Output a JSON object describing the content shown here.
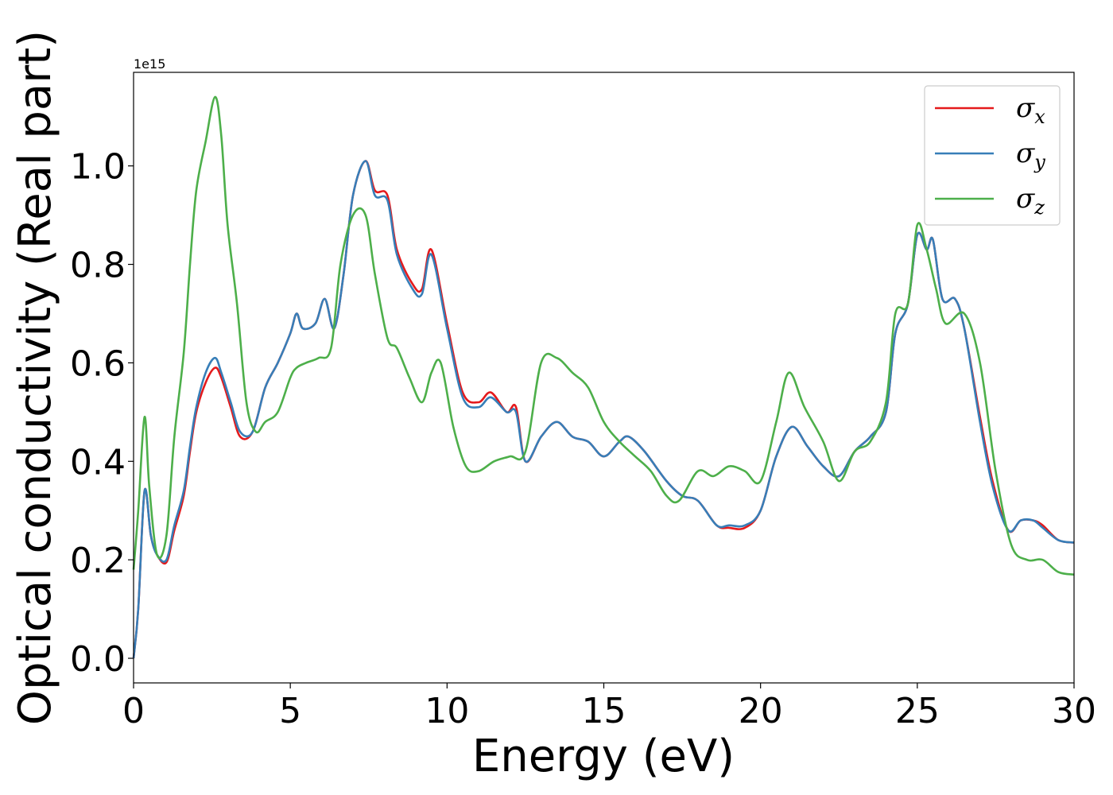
{
  "chart_data": {
    "type": "line",
    "xlabel": "Energy (eV)",
    "ylabel": "Optical conductivity (Real part)",
    "y_offset_label": "1e15",
    "xlim": [
      0,
      30
    ],
    "ylim": [
      -0.05,
      1.19
    ],
    "x_ticks": [
      0,
      5,
      10,
      15,
      20,
      25,
      30
    ],
    "y_ticks": [
      0.0,
      0.2,
      0.4,
      0.6,
      0.8,
      1.0
    ],
    "y_tick_labels": [
      "0.0",
      "0.2",
      "0.4",
      "0.6",
      "0.8",
      "1.0"
    ],
    "legend_position": "top-right",
    "grid": false,
    "series": [
      {
        "name": "σx",
        "symbol": "σ",
        "subscript": "x",
        "color": "#e41a1c",
        "points": [
          [
            0,
            0
          ],
          [
            0.15,
            0.1
          ],
          [
            0.35,
            0.34
          ],
          [
            0.55,
            0.25
          ],
          [
            0.75,
            0.21
          ],
          [
            1.05,
            0.195
          ],
          [
            1.3,
            0.26
          ],
          [
            1.6,
            0.33
          ],
          [
            1.8,
            0.42
          ],
          [
            2.0,
            0.5
          ],
          [
            2.3,
            0.56
          ],
          [
            2.6,
            0.59
          ],
          [
            2.8,
            0.57
          ],
          [
            3.1,
            0.51
          ],
          [
            3.4,
            0.45
          ],
          [
            3.8,
            0.46
          ],
          [
            4.2,
            0.55
          ],
          [
            4.6,
            0.6
          ],
          [
            5.0,
            0.66
          ],
          [
            5.2,
            0.7
          ],
          [
            5.4,
            0.67
          ],
          [
            5.8,
            0.68
          ],
          [
            6.1,
            0.73
          ],
          [
            6.4,
            0.67
          ],
          [
            6.7,
            0.78
          ],
          [
            7.0,
            0.94
          ],
          [
            7.4,
            1.01
          ],
          [
            7.7,
            0.95
          ],
          [
            8.1,
            0.94
          ],
          [
            8.4,
            0.83
          ],
          [
            8.9,
            0.76
          ],
          [
            9.2,
            0.75
          ],
          [
            9.5,
            0.83
          ],
          [
            10.0,
            0.68
          ],
          [
            10.5,
            0.54
          ],
          [
            11.0,
            0.52
          ],
          [
            11.4,
            0.54
          ],
          [
            11.9,
            0.5
          ],
          [
            12.2,
            0.51
          ],
          [
            12.5,
            0.4
          ],
          [
            13.0,
            0.45
          ],
          [
            13.5,
            0.48
          ],
          [
            14.0,
            0.45
          ],
          [
            14.5,
            0.44
          ],
          [
            15.0,
            0.41
          ],
          [
            15.5,
            0.44
          ],
          [
            15.8,
            0.45
          ],
          [
            16.3,
            0.42
          ],
          [
            17.0,
            0.36
          ],
          [
            17.5,
            0.33
          ],
          [
            18.0,
            0.32
          ],
          [
            18.6,
            0.27
          ],
          [
            19.0,
            0.265
          ],
          [
            19.5,
            0.265
          ],
          [
            20.0,
            0.3
          ],
          [
            20.5,
            0.41
          ],
          [
            21.0,
            0.47
          ],
          [
            21.5,
            0.43
          ],
          [
            22.0,
            0.39
          ],
          [
            22.5,
            0.37
          ],
          [
            23.0,
            0.42
          ],
          [
            23.5,
            0.45
          ],
          [
            24.0,
            0.5
          ],
          [
            24.3,
            0.66
          ],
          [
            24.7,
            0.72
          ],
          [
            25.0,
            0.86
          ],
          [
            25.3,
            0.83
          ],
          [
            25.5,
            0.85
          ],
          [
            25.8,
            0.73
          ],
          [
            26.2,
            0.73
          ],
          [
            26.5,
            0.67
          ],
          [
            27.0,
            0.49
          ],
          [
            27.4,
            0.36
          ],
          [
            27.9,
            0.26
          ],
          [
            28.3,
            0.28
          ],
          [
            28.7,
            0.28
          ],
          [
            29.0,
            0.27
          ],
          [
            29.5,
            0.24
          ],
          [
            30.0,
            0.235
          ]
        ]
      },
      {
        "name": "σy",
        "symbol": "σ",
        "subscript": "y",
        "color": "#377eb8",
        "points": [
          [
            0,
            0
          ],
          [
            0.15,
            0.1
          ],
          [
            0.35,
            0.34
          ],
          [
            0.55,
            0.25
          ],
          [
            0.75,
            0.21
          ],
          [
            1.05,
            0.2
          ],
          [
            1.3,
            0.27
          ],
          [
            1.6,
            0.34
          ],
          [
            1.8,
            0.43
          ],
          [
            2.0,
            0.51
          ],
          [
            2.3,
            0.58
          ],
          [
            2.6,
            0.61
          ],
          [
            2.8,
            0.58
          ],
          [
            3.1,
            0.52
          ],
          [
            3.4,
            0.46
          ],
          [
            3.8,
            0.46
          ],
          [
            4.2,
            0.55
          ],
          [
            4.6,
            0.6
          ],
          [
            5.0,
            0.66
          ],
          [
            5.2,
            0.7
          ],
          [
            5.4,
            0.67
          ],
          [
            5.8,
            0.68
          ],
          [
            6.1,
            0.73
          ],
          [
            6.4,
            0.67
          ],
          [
            6.7,
            0.78
          ],
          [
            7.0,
            0.94
          ],
          [
            7.4,
            1.01
          ],
          [
            7.7,
            0.94
          ],
          [
            8.1,
            0.93
          ],
          [
            8.4,
            0.82
          ],
          [
            8.9,
            0.75
          ],
          [
            9.2,
            0.74
          ],
          [
            9.5,
            0.82
          ],
          [
            10.0,
            0.67
          ],
          [
            10.5,
            0.53
          ],
          [
            11.0,
            0.51
          ],
          [
            11.4,
            0.53
          ],
          [
            11.9,
            0.5
          ],
          [
            12.2,
            0.5
          ],
          [
            12.5,
            0.4
          ],
          [
            13.0,
            0.45
          ],
          [
            13.5,
            0.48
          ],
          [
            14.0,
            0.45
          ],
          [
            14.5,
            0.44
          ],
          [
            15.0,
            0.41
          ],
          [
            15.5,
            0.44
          ],
          [
            15.8,
            0.45
          ],
          [
            16.3,
            0.42
          ],
          [
            17.0,
            0.36
          ],
          [
            17.5,
            0.33
          ],
          [
            18.0,
            0.32
          ],
          [
            18.6,
            0.27
          ],
          [
            19.0,
            0.27
          ],
          [
            19.5,
            0.27
          ],
          [
            20.0,
            0.3
          ],
          [
            20.5,
            0.41
          ],
          [
            21.0,
            0.47
          ],
          [
            21.5,
            0.43
          ],
          [
            22.0,
            0.39
          ],
          [
            22.5,
            0.37
          ],
          [
            23.0,
            0.42
          ],
          [
            23.5,
            0.45
          ],
          [
            24.0,
            0.5
          ],
          [
            24.3,
            0.66
          ],
          [
            24.7,
            0.72
          ],
          [
            25.0,
            0.86
          ],
          [
            25.3,
            0.83
          ],
          [
            25.5,
            0.85
          ],
          [
            25.8,
            0.73
          ],
          [
            26.2,
            0.73
          ],
          [
            26.5,
            0.67
          ],
          [
            27.0,
            0.48
          ],
          [
            27.4,
            0.35
          ],
          [
            27.9,
            0.26
          ],
          [
            28.3,
            0.28
          ],
          [
            28.7,
            0.28
          ],
          [
            29.0,
            0.265
          ],
          [
            29.5,
            0.24
          ],
          [
            30.0,
            0.235
          ]
        ]
      },
      {
        "name": "σz",
        "symbol": "σ",
        "subscript": "z",
        "color": "#4daf4a",
        "points": [
          [
            0,
            0.18
          ],
          [
            0.15,
            0.3
          ],
          [
            0.35,
            0.49
          ],
          [
            0.5,
            0.35
          ],
          [
            0.75,
            0.21
          ],
          [
            1.05,
            0.25
          ],
          [
            1.3,
            0.45
          ],
          [
            1.6,
            0.62
          ],
          [
            1.8,
            0.8
          ],
          [
            2.0,
            0.95
          ],
          [
            2.3,
            1.05
          ],
          [
            2.6,
            1.14
          ],
          [
            2.8,
            1.06
          ],
          [
            3.0,
            0.88
          ],
          [
            3.3,
            0.72
          ],
          [
            3.6,
            0.52
          ],
          [
            3.9,
            0.46
          ],
          [
            4.2,
            0.48
          ],
          [
            4.6,
            0.5
          ],
          [
            5.0,
            0.57
          ],
          [
            5.2,
            0.59
          ],
          [
            5.5,
            0.6
          ],
          [
            5.9,
            0.61
          ],
          [
            6.3,
            0.63
          ],
          [
            6.6,
            0.8
          ],
          [
            7.0,
            0.9
          ],
          [
            7.4,
            0.9
          ],
          [
            7.7,
            0.78
          ],
          [
            8.1,
            0.65
          ],
          [
            8.4,
            0.63
          ],
          [
            8.8,
            0.57
          ],
          [
            9.2,
            0.52
          ],
          [
            9.5,
            0.58
          ],
          [
            9.8,
            0.6
          ],
          [
            10.2,
            0.47
          ],
          [
            10.6,
            0.39
          ],
          [
            11.0,
            0.38
          ],
          [
            11.5,
            0.4
          ],
          [
            12.0,
            0.41
          ],
          [
            12.5,
            0.42
          ],
          [
            13.0,
            0.6
          ],
          [
            13.5,
            0.61
          ],
          [
            14.0,
            0.58
          ],
          [
            14.5,
            0.55
          ],
          [
            15.0,
            0.48
          ],
          [
            15.5,
            0.44
          ],
          [
            16.0,
            0.41
          ],
          [
            16.5,
            0.38
          ],
          [
            17.0,
            0.33
          ],
          [
            17.4,
            0.32
          ],
          [
            18.0,
            0.38
          ],
          [
            18.5,
            0.37
          ],
          [
            19.0,
            0.39
          ],
          [
            19.5,
            0.38
          ],
          [
            20.0,
            0.36
          ],
          [
            20.5,
            0.48
          ],
          [
            20.9,
            0.58
          ],
          [
            21.4,
            0.51
          ],
          [
            22.0,
            0.44
          ],
          [
            22.5,
            0.36
          ],
          [
            23.0,
            0.42
          ],
          [
            23.5,
            0.44
          ],
          [
            24.0,
            0.52
          ],
          [
            24.3,
            0.7
          ],
          [
            24.7,
            0.72
          ],
          [
            25.0,
            0.88
          ],
          [
            25.3,
            0.83
          ],
          [
            25.6,
            0.75
          ],
          [
            25.9,
            0.68
          ],
          [
            26.5,
            0.7
          ],
          [
            27.0,
            0.6
          ],
          [
            27.5,
            0.38
          ],
          [
            28.0,
            0.23
          ],
          [
            28.5,
            0.2
          ],
          [
            29.0,
            0.2
          ],
          [
            29.5,
            0.175
          ],
          [
            30.0,
            0.17
          ]
        ]
      }
    ]
  }
}
